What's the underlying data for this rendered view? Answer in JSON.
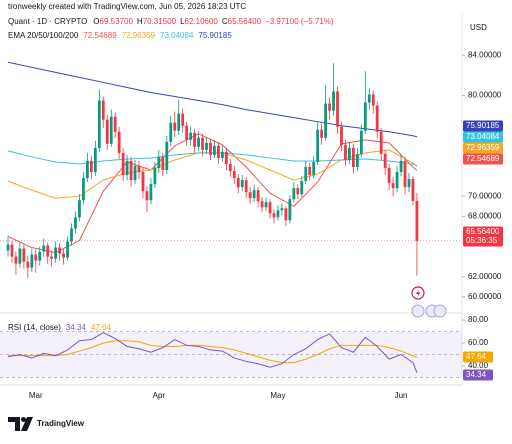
{
  "watermark": "tronweekly created with TradingView.com, Jun 05, 2026 18:23 UTC",
  "brand": "TradingView",
  "chart_data": [
    {
      "type": "candlestick",
      "title": "Quant · 1D · CRYPTO",
      "currency": "USD",
      "ohlc_legend": [
        {
          "label": "O",
          "value": "69.53700"
        },
        {
          "label": "H",
          "value": "70.31500"
        },
        {
          "label": "L",
          "value": "62.10600"
        },
        {
          "label": "C",
          "value": "65.56400"
        }
      ],
      "change": "−3.97100 (−5.71%)",
      "last_price_label": "65.56400",
      "countdown": "05:36:35",
      "up_color": "#089981",
      "down_color": "#f23645",
      "categories": [
        null,
        null,
        null,
        null,
        null,
        null,
        null,
        "Mar",
        null,
        null,
        null,
        null,
        null,
        null,
        null,
        null,
        null,
        null,
        null,
        null,
        null,
        null,
        null,
        null,
        null,
        null,
        null,
        null,
        null,
        null,
        null,
        null,
        null,
        null,
        null,
        null,
        null,
        null,
        "Apr",
        null,
        null,
        null,
        null,
        null,
        null,
        null,
        null,
        null,
        null,
        null,
        null,
        null,
        null,
        null,
        null,
        null,
        null,
        null,
        null,
        null,
        null,
        null,
        null,
        null,
        null,
        null,
        null,
        null,
        "May",
        null,
        null,
        null,
        null,
        null,
        null,
        null,
        null,
        null,
        null,
        null,
        null,
        null,
        null,
        null,
        null,
        null,
        null,
        null,
        null,
        null,
        null,
        null,
        null,
        null,
        null,
        null,
        null,
        null,
        null,
        "Jun",
        null,
        null,
        null,
        null
      ],
      "open": [
        64.6,
        65.2,
        64.0,
        63.3,
        64.8,
        63.5,
        62.9,
        64.2,
        63.6,
        64.5,
        65.1,
        64.0,
        63.8,
        64.9,
        64.3,
        63.9,
        65.5,
        66.8,
        67.9,
        69.6,
        71.8,
        73.5,
        72.4,
        74.8,
        79.5,
        77.6,
        75.2,
        77.9,
        76.4,
        74.3,
        72.1,
        73.5,
        71.6,
        73.0,
        72.4,
        70.5,
        69.6,
        71.2,
        72.8,
        73.9,
        72.6,
        75.4,
        77.3,
        76.5,
        78.2,
        77.0,
        75.6,
        76.3,
        74.9,
        75.8,
        74.6,
        75.3,
        74.1,
        75.0,
        73.8,
        74.4,
        73.2,
        72.5,
        71.8,
        70.9,
        71.6,
        70.4,
        69.8,
        70.6,
        69.5,
        68.9,
        69.4,
        68.3,
        67.9,
        68.6,
        68.8,
        67.6,
        69.7,
        70.8,
        70.2,
        71.5,
        72.9,
        72.1,
        73.4,
        76.6,
        75.8,
        79.2,
        78.5,
        80.4,
        76.9,
        75.1,
        73.6,
        74.8,
        72.9,
        74.2,
        76.5,
        79.3,
        80.1,
        79.0,
        76.4,
        74.2,
        72.8,
        71.3,
        70.8,
        72.4,
        73.5,
        70.9,
        71.7,
        69.537
      ],
      "high": [
        66.1,
        65.6,
        64.5,
        65.4,
        65.2,
        64.1,
        64.8,
        64.7,
        65.0,
        65.8,
        65.4,
        64.6,
        65.5,
        65.3,
        64.8,
        66.0,
        67.3,
        68.5,
        70.2,
        72.4,
        74.3,
        74.0,
        75.5,
        80.6,
        79.9,
        78.1,
        78.6,
        78.3,
        76.9,
        74.8,
        74.1,
        73.9,
        73.6,
        73.5,
        72.8,
        71.0,
        71.8,
        73.4,
        74.6,
        74.3,
        76.0,
        78.0,
        78.4,
        79.6,
        78.7,
        77.4,
        76.9,
        76.7,
        76.4,
        76.2,
        75.9,
        75.7,
        75.6,
        75.4,
        75.0,
        74.8,
        73.7,
        73.0,
        72.2,
        72.1,
        71.9,
        70.9,
        71.1,
        70.9,
        69.9,
        69.9,
        69.7,
        68.7,
        69.1,
        69.3,
        69.0,
        70.1,
        71.4,
        71.2,
        72.0,
        73.5,
        73.3,
        74.0,
        77.4,
        77.2,
        81.0,
        79.8,
        83.2,
        80.9,
        77.4,
        75.6,
        75.4,
        75.2,
        74.8,
        77.1,
        82.4,
        80.7,
        80.5,
        79.4,
        76.8,
        74.6,
        73.2,
        71.9,
        73.0,
        74.2,
        73.9,
        72.3,
        72.0,
        70.315
      ],
      "low": [
        64.0,
        63.4,
        62.2,
        62.9,
        62.8,
        61.9,
        62.5,
        62.4,
        63.1,
        64.0,
        63.3,
        63.0,
        63.4,
        63.6,
        63.2,
        63.6,
        65.1,
        66.3,
        67.5,
        69.2,
        71.4,
        71.7,
        72.0,
        74.4,
        76.8,
        74.6,
        74.9,
        75.8,
        73.7,
        71.5,
        71.6,
        70.9,
        71.2,
        71.7,
        69.8,
        68.4,
        69.2,
        70.8,
        72.3,
        72.0,
        72.2,
        75.0,
        75.9,
        76.1,
        76.3,
        75.0,
        75.1,
        74.3,
        74.5,
        74.0,
        74.2,
        73.6,
        73.8,
        73.2,
        73.4,
        72.6,
        71.9,
        71.2,
        70.3,
        70.5,
        69.8,
        69.2,
        69.4,
        68.9,
        68.4,
        68.5,
        67.8,
        67.3,
        67.6,
        68.1,
        67.0,
        67.3,
        69.4,
        69.7,
        69.9,
        71.2,
        71.6,
        71.8,
        73.1,
        75.1,
        75.5,
        77.6,
        78.0,
        76.2,
        74.5,
        73.0,
        73.2,
        72.3,
        72.5,
        73.9,
        76.2,
        78.6,
        78.2,
        75.8,
        73.6,
        72.1,
        70.6,
        70.0,
        70.4,
        72.0,
        70.2,
        70.4,
        69.1,
        62.106
      ],
      "close": [
        65.2,
        64.0,
        63.3,
        64.8,
        63.5,
        62.9,
        64.2,
        63.6,
        64.5,
        65.1,
        64.0,
        63.8,
        64.9,
        64.3,
        63.9,
        65.5,
        66.8,
        67.9,
        69.6,
        71.8,
        73.5,
        72.4,
        74.8,
        79.5,
        77.6,
        75.2,
        77.9,
        76.4,
        74.3,
        72.1,
        73.5,
        71.6,
        73.0,
        72.4,
        70.5,
        69.6,
        71.2,
        72.8,
        73.9,
        72.6,
        75.4,
        77.3,
        76.5,
        78.2,
        77.0,
        75.6,
        76.3,
        74.9,
        75.8,
        74.6,
        75.3,
        74.1,
        75.0,
        73.8,
        74.4,
        73.2,
        72.5,
        71.8,
        70.9,
        71.6,
        70.4,
        69.8,
        70.6,
        69.5,
        68.9,
        69.4,
        68.3,
        67.9,
        68.6,
        68.8,
        67.6,
        69.7,
        70.8,
        70.2,
        71.5,
        72.9,
        72.1,
        73.4,
        76.6,
        75.8,
        79.2,
        78.5,
        80.4,
        76.9,
        75.1,
        73.6,
        74.8,
        72.9,
        74.2,
        76.5,
        79.3,
        80.1,
        79.0,
        76.4,
        74.2,
        72.8,
        71.3,
        70.8,
        72.4,
        73.5,
        70.9,
        71.7,
        69.537,
        65.564
      ],
      "overlay": {
        "label": "EMA 20/50/100/200",
        "x": [
          0,
          6,
          12,
          18,
          24,
          30,
          36,
          42,
          48,
          54,
          60,
          66,
          72,
          78,
          84,
          90,
          96,
          102,
          103
        ],
        "series": [
          {
            "color": "#f05350",
            "values": [
              66.0,
              64.9,
              64.4,
              65.6,
              70.5,
              73.4,
              72.6,
              75.0,
              76.2,
              75.1,
              72.9,
              70.3,
              69.0,
              71.4,
              75.2,
              75.6,
              75.3,
              72.9,
              72.54689
            ]
          },
          {
            "color": "#f5a623",
            "values": [
              71.5,
              70.6,
              69.8,
              70.0,
              71.6,
              72.3,
              72.6,
              73.6,
              74.3,
              74.3,
              73.6,
              72.6,
              71.6,
              72.2,
              73.6,
              74.3,
              74.6,
              73.3,
              72.96359
            ]
          },
          {
            "color": "#35c4dc",
            "values": [
              74.5,
              73.9,
              73.4,
              73.2,
              73.5,
              73.7,
              73.8,
              74.1,
              74.3,
              74.3,
              74.1,
              73.8,
              73.5,
              73.5,
              73.6,
              73.7,
              73.5,
              73.2,
              73.04084
            ]
          },
          {
            "color": "#3444b8",
            "values": [
              83.3,
              82.8,
              82.3,
              81.8,
              81.3,
              80.8,
              80.3,
              79.9,
              79.5,
              79.1,
              78.6,
              78.2,
              77.8,
              77.4,
              77.0,
              76.7,
              76.4,
              76.0,
              75.90185
            ]
          }
        ]
      },
      "ylim": [
        58.4,
        87.5
      ],
      "yticks": [
        {
          "value": 60,
          "label": "60.00000"
        },
        {
          "value": 62,
          "label": "62.00000"
        },
        {
          "value": 68,
          "label": "68.00000"
        },
        {
          "value": 70,
          "label": "70.00000"
        },
        {
          "value": 80,
          "label": "80.00000"
        },
        {
          "value": 84,
          "label": "84.00000"
        }
      ]
    },
    {
      "type": "line",
      "title": "RSI (14, close)",
      "x": [
        0,
        3,
        6,
        9,
        12,
        15,
        18,
        21,
        24,
        27,
        30,
        33,
        36,
        39,
        42,
        45,
        48,
        51,
        54,
        57,
        60,
        63,
        66,
        69,
        72,
        75,
        78,
        81,
        84,
        87,
        90,
        93,
        96,
        99,
        102,
        103
      ],
      "series": [
        {
          "color": "#7e57c2",
          "values": [
            48,
            50,
            47,
            51,
            49,
            54,
            62,
            63,
            69,
            64,
            57,
            55,
            52,
            56,
            63,
            58,
            57,
            54,
            53,
            47,
            44,
            42,
            39,
            42,
            50,
            55,
            63,
            68,
            56,
            52,
            65,
            57,
            46,
            50,
            43,
            34.34
          ]
        },
        {
          "color": "#f7a600",
          "values": [
            49,
            49,
            49,
            49,
            49,
            50,
            53,
            56,
            60,
            62,
            62,
            61,
            58,
            57,
            57,
            58,
            58,
            57,
            56,
            54,
            51,
            48,
            45,
            43,
            43,
            46,
            50,
            55,
            58,
            58,
            58,
            58,
            56,
            53,
            49,
            47.64
          ]
        }
      ],
      "band": [
        30,
        70
      ],
      "midline": 50,
      "ylim": [
        23.5,
        86.1
      ],
      "yticks": [
        {
          "value": 40,
          "label": "40.00"
        },
        {
          "value": 60,
          "label": "60.00"
        },
        {
          "value": 80,
          "label": "80.00"
        }
      ]
    }
  ]
}
